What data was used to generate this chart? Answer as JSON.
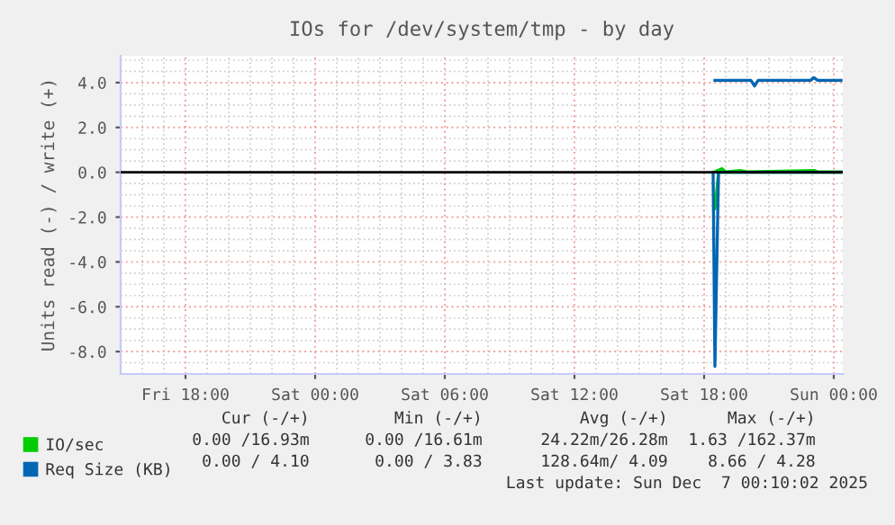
{
  "chart_data": {
    "type": "line",
    "title": "IOs for /dev/system/tmp - by day",
    "ylabel": "Units read (-) / write (+)",
    "xlim": [
      "2025-12-05T15:00",
      "2025-12-07T00:25"
    ],
    "xticks": [
      {
        "value": "2025-12-05T18:00",
        "label": "Fri 18:00"
      },
      {
        "value": "2025-12-06T00:00",
        "label": "Sat 00:00"
      },
      {
        "value": "2025-12-06T06:00",
        "label": "Sat 06:00"
      },
      {
        "value": "2025-12-06T12:00",
        "label": "Sat 12:00"
      },
      {
        "value": "2025-12-06T18:00",
        "label": "Sat 18:00"
      },
      {
        "value": "2025-12-07T00:00",
        "label": "Sun 00:00"
      }
    ],
    "ylim": [
      -9,
      5.2
    ],
    "yticks": [
      {
        "value": -8,
        "label": "-8.0"
      },
      {
        "value": -6,
        "label": "-6.0"
      },
      {
        "value": -4,
        "label": "-4.0"
      },
      {
        "value": -2,
        "label": "-2.0"
      },
      {
        "value": 0,
        "label": "0.0"
      },
      {
        "value": 2,
        "label": "2.0"
      },
      {
        "value": 4,
        "label": "4.0"
      }
    ],
    "grid": true,
    "legend": "bottom left",
    "ref_lines": [
      {
        "axis": "y",
        "value": 0,
        "color": "#000000"
      }
    ],
    "series": [
      {
        "name": "IO/sec",
        "color": "#00cc00",
        "x": [
          "2025-12-06T18:30",
          "2025-12-06T18:50",
          "2025-12-06T19:00",
          "2025-12-06T19:40",
          "2025-12-06T20:00",
          "2025-12-06T23:05",
          "2025-12-06T23:15",
          "2025-12-07T00:20"
        ],
        "values": [
          0.02,
          0.16,
          0.02,
          0.08,
          0.02,
          0.08,
          0.02,
          0.02
        ]
      },
      {
        "color": "#00cc00",
        "x": [
          "2025-12-06T18:30",
          "2025-12-06T18:40",
          "2025-12-07T00:20"
        ],
        "values": [
          -1.63,
          0,
          0
        ]
      },
      {
        "name": "Req Size (KB)",
        "color": "#0066b3",
        "x": [
          "2025-12-06T18:30",
          "2025-12-06T20:10",
          "2025-12-06T20:20",
          "2025-12-06T20:30",
          "2025-12-06T22:55",
          "2025-12-06T23:05",
          "2025-12-06T23:15",
          "2025-12-07T00:20"
        ],
        "values": [
          4.1,
          4.1,
          3.85,
          4.1,
          4.1,
          4.22,
          4.1,
          4.1
        ]
      },
      {
        "color": "#0066b3",
        "x": [
          "2025-12-06T18:25",
          "2025-12-06T18:30",
          "2025-12-06T18:40",
          "2025-12-07T00:20"
        ],
        "values": [
          0,
          -8.66,
          0,
          0
        ]
      }
    ],
    "annotations": [
      "Cur (-/+)",
      "Min (-/+)",
      "Avg (-/+)",
      "Max (-/+)",
      "0.00 /16.93m",
      "0.00 /16.61m",
      "24.22m/26.28m",
      "1.63 /162.37m",
      "0.00 / 4.10",
      "0.00 / 3.83",
      "128.64m/ 4.09",
      "8.66 / 4.28",
      "Last update: Sun Dec  7 00:10:02 2025"
    ]
  }
}
